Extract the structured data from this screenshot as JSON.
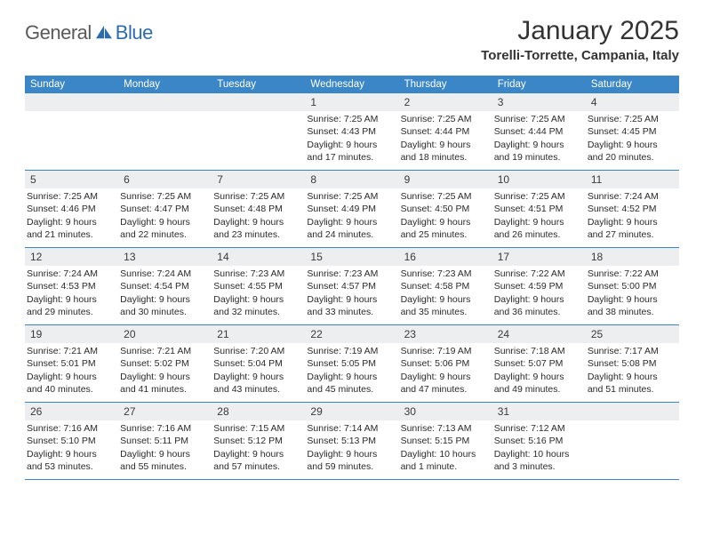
{
  "brand": {
    "general": "General",
    "blue": "Blue"
  },
  "title": "January 2025",
  "location": "Torelli-Torrette, Campania, Italy",
  "colors": {
    "header_bg": "#3b86c6",
    "header_text": "#ffffff",
    "daynum_bg": "#eceef0",
    "border": "#3b86c6",
    "logo_gray": "#5a5a5a",
    "logo_blue": "#2d6bb0"
  },
  "day_headers": [
    "Sunday",
    "Monday",
    "Tuesday",
    "Wednesday",
    "Thursday",
    "Friday",
    "Saturday"
  ],
  "weeks": [
    [
      {
        "n": "",
        "rise": "",
        "set": "",
        "dl1": "",
        "dl2": ""
      },
      {
        "n": "",
        "rise": "",
        "set": "",
        "dl1": "",
        "dl2": ""
      },
      {
        "n": "",
        "rise": "",
        "set": "",
        "dl1": "",
        "dl2": ""
      },
      {
        "n": "1",
        "rise": "Sunrise: 7:25 AM",
        "set": "Sunset: 4:43 PM",
        "dl1": "Daylight: 9 hours",
        "dl2": "and 17 minutes."
      },
      {
        "n": "2",
        "rise": "Sunrise: 7:25 AM",
        "set": "Sunset: 4:44 PM",
        "dl1": "Daylight: 9 hours",
        "dl2": "and 18 minutes."
      },
      {
        "n": "3",
        "rise": "Sunrise: 7:25 AM",
        "set": "Sunset: 4:44 PM",
        "dl1": "Daylight: 9 hours",
        "dl2": "and 19 minutes."
      },
      {
        "n": "4",
        "rise": "Sunrise: 7:25 AM",
        "set": "Sunset: 4:45 PM",
        "dl1": "Daylight: 9 hours",
        "dl2": "and 20 minutes."
      }
    ],
    [
      {
        "n": "5",
        "rise": "Sunrise: 7:25 AM",
        "set": "Sunset: 4:46 PM",
        "dl1": "Daylight: 9 hours",
        "dl2": "and 21 minutes."
      },
      {
        "n": "6",
        "rise": "Sunrise: 7:25 AM",
        "set": "Sunset: 4:47 PM",
        "dl1": "Daylight: 9 hours",
        "dl2": "and 22 minutes."
      },
      {
        "n": "7",
        "rise": "Sunrise: 7:25 AM",
        "set": "Sunset: 4:48 PM",
        "dl1": "Daylight: 9 hours",
        "dl2": "and 23 minutes."
      },
      {
        "n": "8",
        "rise": "Sunrise: 7:25 AM",
        "set": "Sunset: 4:49 PM",
        "dl1": "Daylight: 9 hours",
        "dl2": "and 24 minutes."
      },
      {
        "n": "9",
        "rise": "Sunrise: 7:25 AM",
        "set": "Sunset: 4:50 PM",
        "dl1": "Daylight: 9 hours",
        "dl2": "and 25 minutes."
      },
      {
        "n": "10",
        "rise": "Sunrise: 7:25 AM",
        "set": "Sunset: 4:51 PM",
        "dl1": "Daylight: 9 hours",
        "dl2": "and 26 minutes."
      },
      {
        "n": "11",
        "rise": "Sunrise: 7:24 AM",
        "set": "Sunset: 4:52 PM",
        "dl1": "Daylight: 9 hours",
        "dl2": "and 27 minutes."
      }
    ],
    [
      {
        "n": "12",
        "rise": "Sunrise: 7:24 AM",
        "set": "Sunset: 4:53 PM",
        "dl1": "Daylight: 9 hours",
        "dl2": "and 29 minutes."
      },
      {
        "n": "13",
        "rise": "Sunrise: 7:24 AM",
        "set": "Sunset: 4:54 PM",
        "dl1": "Daylight: 9 hours",
        "dl2": "and 30 minutes."
      },
      {
        "n": "14",
        "rise": "Sunrise: 7:23 AM",
        "set": "Sunset: 4:55 PM",
        "dl1": "Daylight: 9 hours",
        "dl2": "and 32 minutes."
      },
      {
        "n": "15",
        "rise": "Sunrise: 7:23 AM",
        "set": "Sunset: 4:57 PM",
        "dl1": "Daylight: 9 hours",
        "dl2": "and 33 minutes."
      },
      {
        "n": "16",
        "rise": "Sunrise: 7:23 AM",
        "set": "Sunset: 4:58 PM",
        "dl1": "Daylight: 9 hours",
        "dl2": "and 35 minutes."
      },
      {
        "n": "17",
        "rise": "Sunrise: 7:22 AM",
        "set": "Sunset: 4:59 PM",
        "dl1": "Daylight: 9 hours",
        "dl2": "and 36 minutes."
      },
      {
        "n": "18",
        "rise": "Sunrise: 7:22 AM",
        "set": "Sunset: 5:00 PM",
        "dl1": "Daylight: 9 hours",
        "dl2": "and 38 minutes."
      }
    ],
    [
      {
        "n": "19",
        "rise": "Sunrise: 7:21 AM",
        "set": "Sunset: 5:01 PM",
        "dl1": "Daylight: 9 hours",
        "dl2": "and 40 minutes."
      },
      {
        "n": "20",
        "rise": "Sunrise: 7:21 AM",
        "set": "Sunset: 5:02 PM",
        "dl1": "Daylight: 9 hours",
        "dl2": "and 41 minutes."
      },
      {
        "n": "21",
        "rise": "Sunrise: 7:20 AM",
        "set": "Sunset: 5:04 PM",
        "dl1": "Daylight: 9 hours",
        "dl2": "and 43 minutes."
      },
      {
        "n": "22",
        "rise": "Sunrise: 7:19 AM",
        "set": "Sunset: 5:05 PM",
        "dl1": "Daylight: 9 hours",
        "dl2": "and 45 minutes."
      },
      {
        "n": "23",
        "rise": "Sunrise: 7:19 AM",
        "set": "Sunset: 5:06 PM",
        "dl1": "Daylight: 9 hours",
        "dl2": "and 47 minutes."
      },
      {
        "n": "24",
        "rise": "Sunrise: 7:18 AM",
        "set": "Sunset: 5:07 PM",
        "dl1": "Daylight: 9 hours",
        "dl2": "and 49 minutes."
      },
      {
        "n": "25",
        "rise": "Sunrise: 7:17 AM",
        "set": "Sunset: 5:08 PM",
        "dl1": "Daylight: 9 hours",
        "dl2": "and 51 minutes."
      }
    ],
    [
      {
        "n": "26",
        "rise": "Sunrise: 7:16 AM",
        "set": "Sunset: 5:10 PM",
        "dl1": "Daylight: 9 hours",
        "dl2": "and 53 minutes."
      },
      {
        "n": "27",
        "rise": "Sunrise: 7:16 AM",
        "set": "Sunset: 5:11 PM",
        "dl1": "Daylight: 9 hours",
        "dl2": "and 55 minutes."
      },
      {
        "n": "28",
        "rise": "Sunrise: 7:15 AM",
        "set": "Sunset: 5:12 PM",
        "dl1": "Daylight: 9 hours",
        "dl2": "and 57 minutes."
      },
      {
        "n": "29",
        "rise": "Sunrise: 7:14 AM",
        "set": "Sunset: 5:13 PM",
        "dl1": "Daylight: 9 hours",
        "dl2": "and 59 minutes."
      },
      {
        "n": "30",
        "rise": "Sunrise: 7:13 AM",
        "set": "Sunset: 5:15 PM",
        "dl1": "Daylight: 10 hours",
        "dl2": "and 1 minute."
      },
      {
        "n": "31",
        "rise": "Sunrise: 7:12 AM",
        "set": "Sunset: 5:16 PM",
        "dl1": "Daylight: 10 hours",
        "dl2": "and 3 minutes."
      },
      {
        "n": "",
        "rise": "",
        "set": "",
        "dl1": "",
        "dl2": ""
      }
    ]
  ]
}
